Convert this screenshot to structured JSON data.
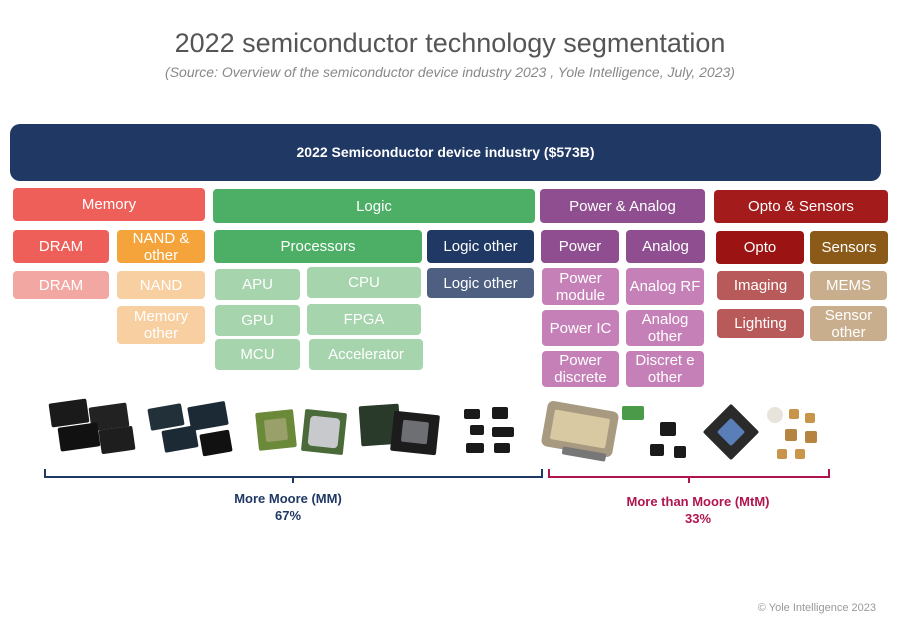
{
  "header": {
    "title": "2022 semiconductor technology segmentation",
    "source": "(Source:  Overview of the semiconductor device industry 2023 , Yole Intelligence, July, 2023)"
  },
  "banner": {
    "label": "2022 Semiconductor device industry ($573B)"
  },
  "memory": {
    "label": "Memory",
    "dram": {
      "label": "DRAM",
      "sub": [
        "DRAM"
      ]
    },
    "nand": {
      "label": "NAND & other",
      "sub": [
        "NAND",
        "Memory other"
      ]
    }
  },
  "logic": {
    "label": "Logic",
    "processors": {
      "label": "Processors",
      "sub": [
        "APU",
        "CPU",
        "GPU",
        "FPGA",
        "MCU",
        "Accelerator"
      ]
    },
    "logic_other": {
      "label": "Logic other",
      "sub": [
        "Logic other"
      ]
    }
  },
  "power_analog": {
    "label": "Power & Analog",
    "power": {
      "label": "Power",
      "sub": [
        "Power module",
        "Power IC",
        "Power discrete"
      ]
    },
    "analog": {
      "label": "Analog",
      "sub": [
        "Analog RF",
        "Analog other",
        "Discret e other"
      ]
    }
  },
  "opto_sensors": {
    "label": "Opto & Sensors",
    "opto": {
      "label": "Opto",
      "sub": [
        "Imaging",
        "Lighting"
      ]
    },
    "sensors": {
      "label": "Sensors",
      "sub": [
        "MEMS",
        "Sensor other"
      ]
    }
  },
  "footer": {
    "mm": {
      "label": "More Moore (MM)",
      "share": "67%"
    },
    "mtm": {
      "label": "More than Moore (MtM)",
      "share": "33%"
    },
    "copyright": "© Yole Intelligence 2023"
  },
  "colors": {
    "banner": "#1f3864",
    "memory": "#ef5f5a",
    "memory_light": "#f2a7a3",
    "nand": "#f4a43a",
    "nand_light": "#f8cfa0",
    "logic": "#4caf65",
    "logic_light": "#a5d4ad",
    "logic_other": "#1f3864",
    "logic_other_light": "#4e5f82",
    "power_analog": "#8e4e8f",
    "power_analog_light": "#c680b8",
    "opto_sensors": "#a31b1b",
    "opto": "#9c1313",
    "opto_light": "#b95a5a",
    "sensors": "#8c5a18",
    "sensors_light": "#c9ae8d",
    "mm": "#1f3864",
    "mtm": "#b0154f"
  }
}
